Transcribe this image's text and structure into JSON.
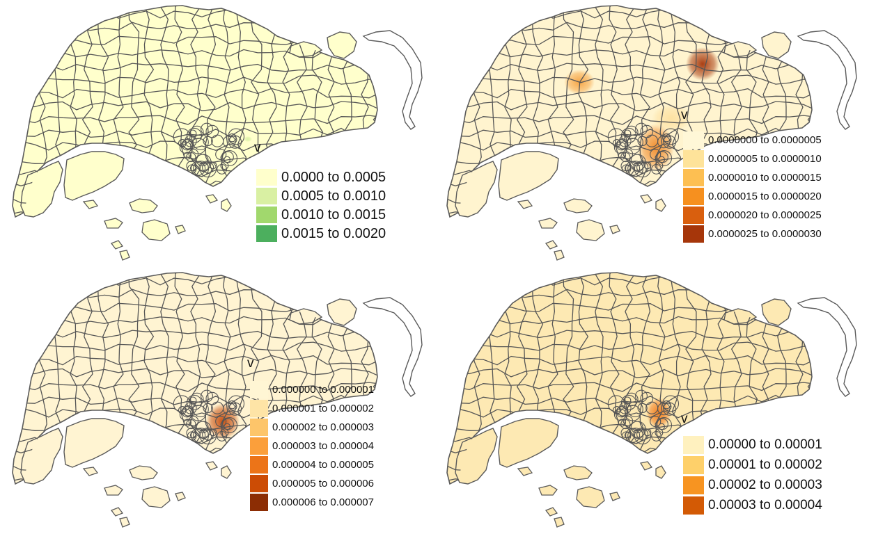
{
  "panels": [
    {
      "id": "p1",
      "variable_label": "v",
      "legend": [
        {
          "label": "0.0000 to 0.0005",
          "color": "#ffffcc"
        },
        {
          "label": "0.0005 to 0.0010",
          "color": "#d9f0a3"
        },
        {
          "label": "0.0010 to 0.0015",
          "color": "#a1d86d"
        },
        {
          "label": "0.0015 to 0.0020",
          "color": "#4caf5e"
        }
      ]
    },
    {
      "id": "p2",
      "variable_label": "v",
      "legend": [
        {
          "label": "0.0000000 to 0.0000005",
          "color": "#fff7d7"
        },
        {
          "label": "0.0000005 to 0.0000010",
          "color": "#fee39a"
        },
        {
          "label": "0.0000010 to 0.0000015",
          "color": "#fdbf52"
        },
        {
          "label": "0.0000015 to 0.0000020",
          "color": "#f6901f"
        },
        {
          "label": "0.0000020 to 0.0000025",
          "color": "#d95f0e"
        },
        {
          "label": "0.0000025 to 0.0000030",
          "color": "#a6360a"
        }
      ]
    },
    {
      "id": "p3",
      "variable_label": "v",
      "legend": [
        {
          "label": "0.000000 to 0.000001",
          "color": "#fff6d4"
        },
        {
          "label": "0.000001 to 0.000002",
          "color": "#fee4a6"
        },
        {
          "label": "0.000002 to 0.000003",
          "color": "#fdc56a"
        },
        {
          "label": "0.000003 to 0.000004",
          "color": "#fb9f3b"
        },
        {
          "label": "0.000004 to 0.000005",
          "color": "#ec7418"
        },
        {
          "label": "0.000005 to 0.000006",
          "color": "#cc4c05"
        },
        {
          "label": "0.000006 to 0.000007",
          "color": "#8c2d04"
        }
      ]
    },
    {
      "id": "p4",
      "variable_label": "v",
      "legend": [
        {
          "label": "0.00000 to 0.00001",
          "color": "#fff1bf"
        },
        {
          "label": "0.00001 to 0.00002",
          "color": "#fed06a"
        },
        {
          "label": "0.00002 to 0.00003",
          "color": "#f79421"
        },
        {
          "label": "0.00003 to 0.00004",
          "color": "#d35a05"
        }
      ]
    }
  ]
}
